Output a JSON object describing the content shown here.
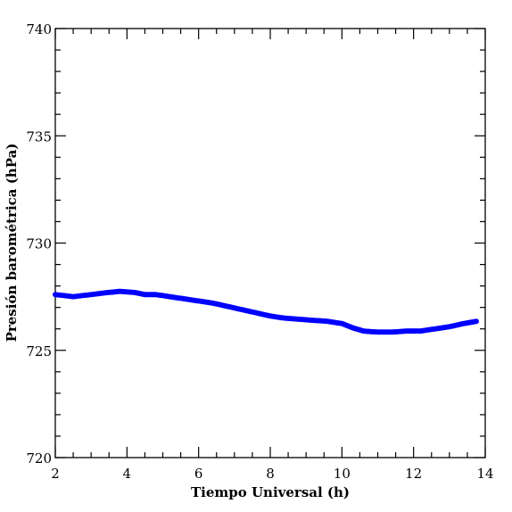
{
  "chart_data": {
    "type": "scatter",
    "title": "",
    "xlabel": "Tiempo Universal (h)",
    "ylabel": "Presión barométrica (hPa)",
    "xlim": [
      2,
      14
    ],
    "ylim": [
      720,
      740
    ],
    "x_ticks": [
      "2",
      "4",
      "6",
      "8",
      "10",
      "12",
      "14"
    ],
    "y_ticks": [
      "720",
      "725",
      "730",
      "735",
      "740"
    ],
    "marker_color": "#0000ff",
    "grid": false,
    "series": [
      {
        "x": [
          2.0,
          2.5,
          3.0,
          3.5,
          3.8,
          4.2,
          4.5,
          4.8,
          5.2,
          5.6,
          6.0,
          6.4,
          6.8,
          7.2,
          7.6,
          8.0,
          8.4,
          8.8,
          9.2,
          9.6,
          10.0,
          10.3,
          10.6,
          11.0,
          11.4,
          11.8,
          12.2,
          12.6,
          13.0,
          13.4,
          13.75
        ],
        "y": [
          727.6,
          727.5,
          727.6,
          727.7,
          727.75,
          727.7,
          727.6,
          727.6,
          727.5,
          727.4,
          727.3,
          727.2,
          727.05,
          726.9,
          726.75,
          726.6,
          726.5,
          726.45,
          726.4,
          726.35,
          726.25,
          726.05,
          725.9,
          725.85,
          725.85,
          725.9,
          725.9,
          726.0,
          726.1,
          726.25,
          726.35
        ]
      }
    ]
  }
}
